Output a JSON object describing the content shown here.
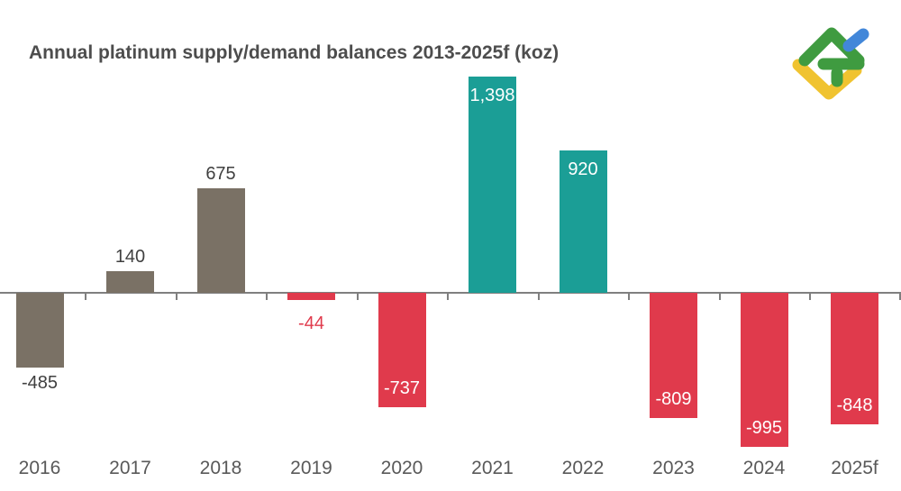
{
  "header": {
    "title": "Annual platinum supply/demand balances 2013-2025f (koz)"
  },
  "logo": {
    "name": "LiteFinance",
    "colors": {
      "green": "#3f9b40",
      "blue": "#4287d9",
      "yellow": "#f0c330"
    }
  },
  "chart_data": {
    "type": "bar",
    "title": "Annual platinum supply/demand balances 2013-2025f (koz)",
    "unit": "koz",
    "xlabel": "",
    "ylabel": "",
    "ylim": [
      -1100,
      1450
    ],
    "gridlines": false,
    "y_axis_visible": false,
    "legend": null,
    "categories": [
      "2016",
      "2017",
      "2018",
      "2019",
      "2020",
      "2021",
      "2022",
      "2023",
      "2024",
      "2025f"
    ],
    "values": [
      -485,
      140,
      675,
      -44,
      -737,
      1398,
      920,
      -809,
      -995,
      -848
    ],
    "bars": [
      {
        "category": "2016",
        "value": -485,
        "label": "-485",
        "color": "#7a7165",
        "label_color": "#404040",
        "label_position": "below"
      },
      {
        "category": "2017",
        "value": 140,
        "label": "140",
        "color": "#7a7165",
        "label_color": "#404040",
        "label_position": "above"
      },
      {
        "category": "2018",
        "value": 675,
        "label": "675",
        "color": "#7a7165",
        "label_color": "#404040",
        "label_position": "above"
      },
      {
        "category": "2019",
        "value": -44,
        "label": "-44",
        "color": "#e03a4c",
        "label_color": "#e03a4c",
        "label_position": "below"
      },
      {
        "category": "2020",
        "value": -737,
        "label": "-737",
        "color": "#e03a4c",
        "label_color": "#ffffff",
        "label_position": "inside-end"
      },
      {
        "category": "2021",
        "value": 1398,
        "label": "1,398",
        "color": "#1b9e96",
        "label_color": "#ffffff",
        "label_position": "inside-end"
      },
      {
        "category": "2022",
        "value": 920,
        "label": "920",
        "color": "#1b9e96",
        "label_color": "#ffffff",
        "label_position": "inside-end"
      },
      {
        "category": "2023",
        "value": -809,
        "label": "-809",
        "color": "#e03a4c",
        "label_color": "#ffffff",
        "label_position": "inside-end"
      },
      {
        "category": "2024",
        "value": -995,
        "label": "-995",
        "color": "#e03a4c",
        "label_color": "#ffffff",
        "label_position": "inside-end"
      },
      {
        "category": "2025f",
        "value": -848,
        "label": "-848",
        "color": "#e03a4c",
        "label_color": "#ffffff",
        "label_position": "inside-end"
      }
    ],
    "axis": {
      "zero_line_color": "#7f7f7f",
      "tick_color": "#7f7f7f"
    },
    "text_colors": {
      "title": "#4d4d4d",
      "category": "#595959"
    }
  }
}
